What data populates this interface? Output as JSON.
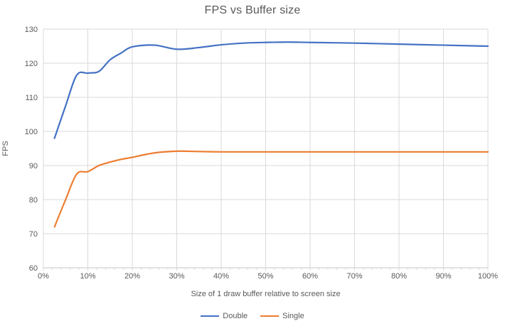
{
  "chart": {
    "title": "FPS vs Buffer size",
    "y_axis_title": "FPS",
    "x_axis_title": "Size of 1 draw buffer relative to screen size",
    "legend": {
      "items": [
        {
          "label": "Double",
          "color": "#4472C4"
        },
        {
          "label": "Single",
          "color": "#ED7D31"
        }
      ]
    }
  },
  "chart_data": {
    "type": "line",
    "title": "FPS vs Buffer size",
    "xlabel": "Size of 1 draw buffer relative to screen size",
    "ylabel": "FPS",
    "x_unit": "percent of screen size",
    "xlim": [
      0,
      100
    ],
    "ylim": [
      60,
      130
    ],
    "y_ticks": [
      60,
      70,
      80,
      90,
      100,
      110,
      120,
      130
    ],
    "x_major_ticks": [
      0,
      10,
      20,
      30,
      40,
      50,
      60,
      70,
      80,
      90,
      100
    ],
    "x_tick_labels": [
      "0%",
      "10%",
      "20%",
      "30%",
      "40%",
      "50%",
      "60%",
      "70%",
      "80%",
      "90%",
      "100%"
    ],
    "x_minor_tick_step": 2,
    "grid": true,
    "smooth_lines": true,
    "legend_position": "bottom",
    "x": [
      2.5,
      5,
      7.5,
      10,
      12.5,
      15,
      17.5,
      20,
      25,
      30,
      35,
      40,
      45,
      50,
      55,
      60,
      70,
      80,
      90,
      100
    ],
    "series": [
      {
        "name": "Double",
        "color": "#4472C4",
        "values": [
          98,
          107.5,
          116.5,
          117.1,
          117.6,
          121,
          123,
          124.8,
          125.3,
          124.1,
          124.6,
          125.4,
          125.9,
          126.1,
          126.2,
          126.1,
          125.9,
          125.6,
          125.3,
          125
        ]
      },
      {
        "name": "Single",
        "color": "#ED7D31",
        "values": [
          72,
          80,
          87.5,
          88.2,
          90,
          91,
          91.8,
          92.4,
          93.7,
          94.2,
          94.1,
          94,
          94,
          94,
          94,
          94,
          94,
          94,
          94,
          94
        ]
      }
    ],
    "colors": {
      "grid": "#D9D9D9",
      "axis": "#C6C6C6",
      "text": "#595959",
      "background": "#FFFFFF"
    }
  }
}
